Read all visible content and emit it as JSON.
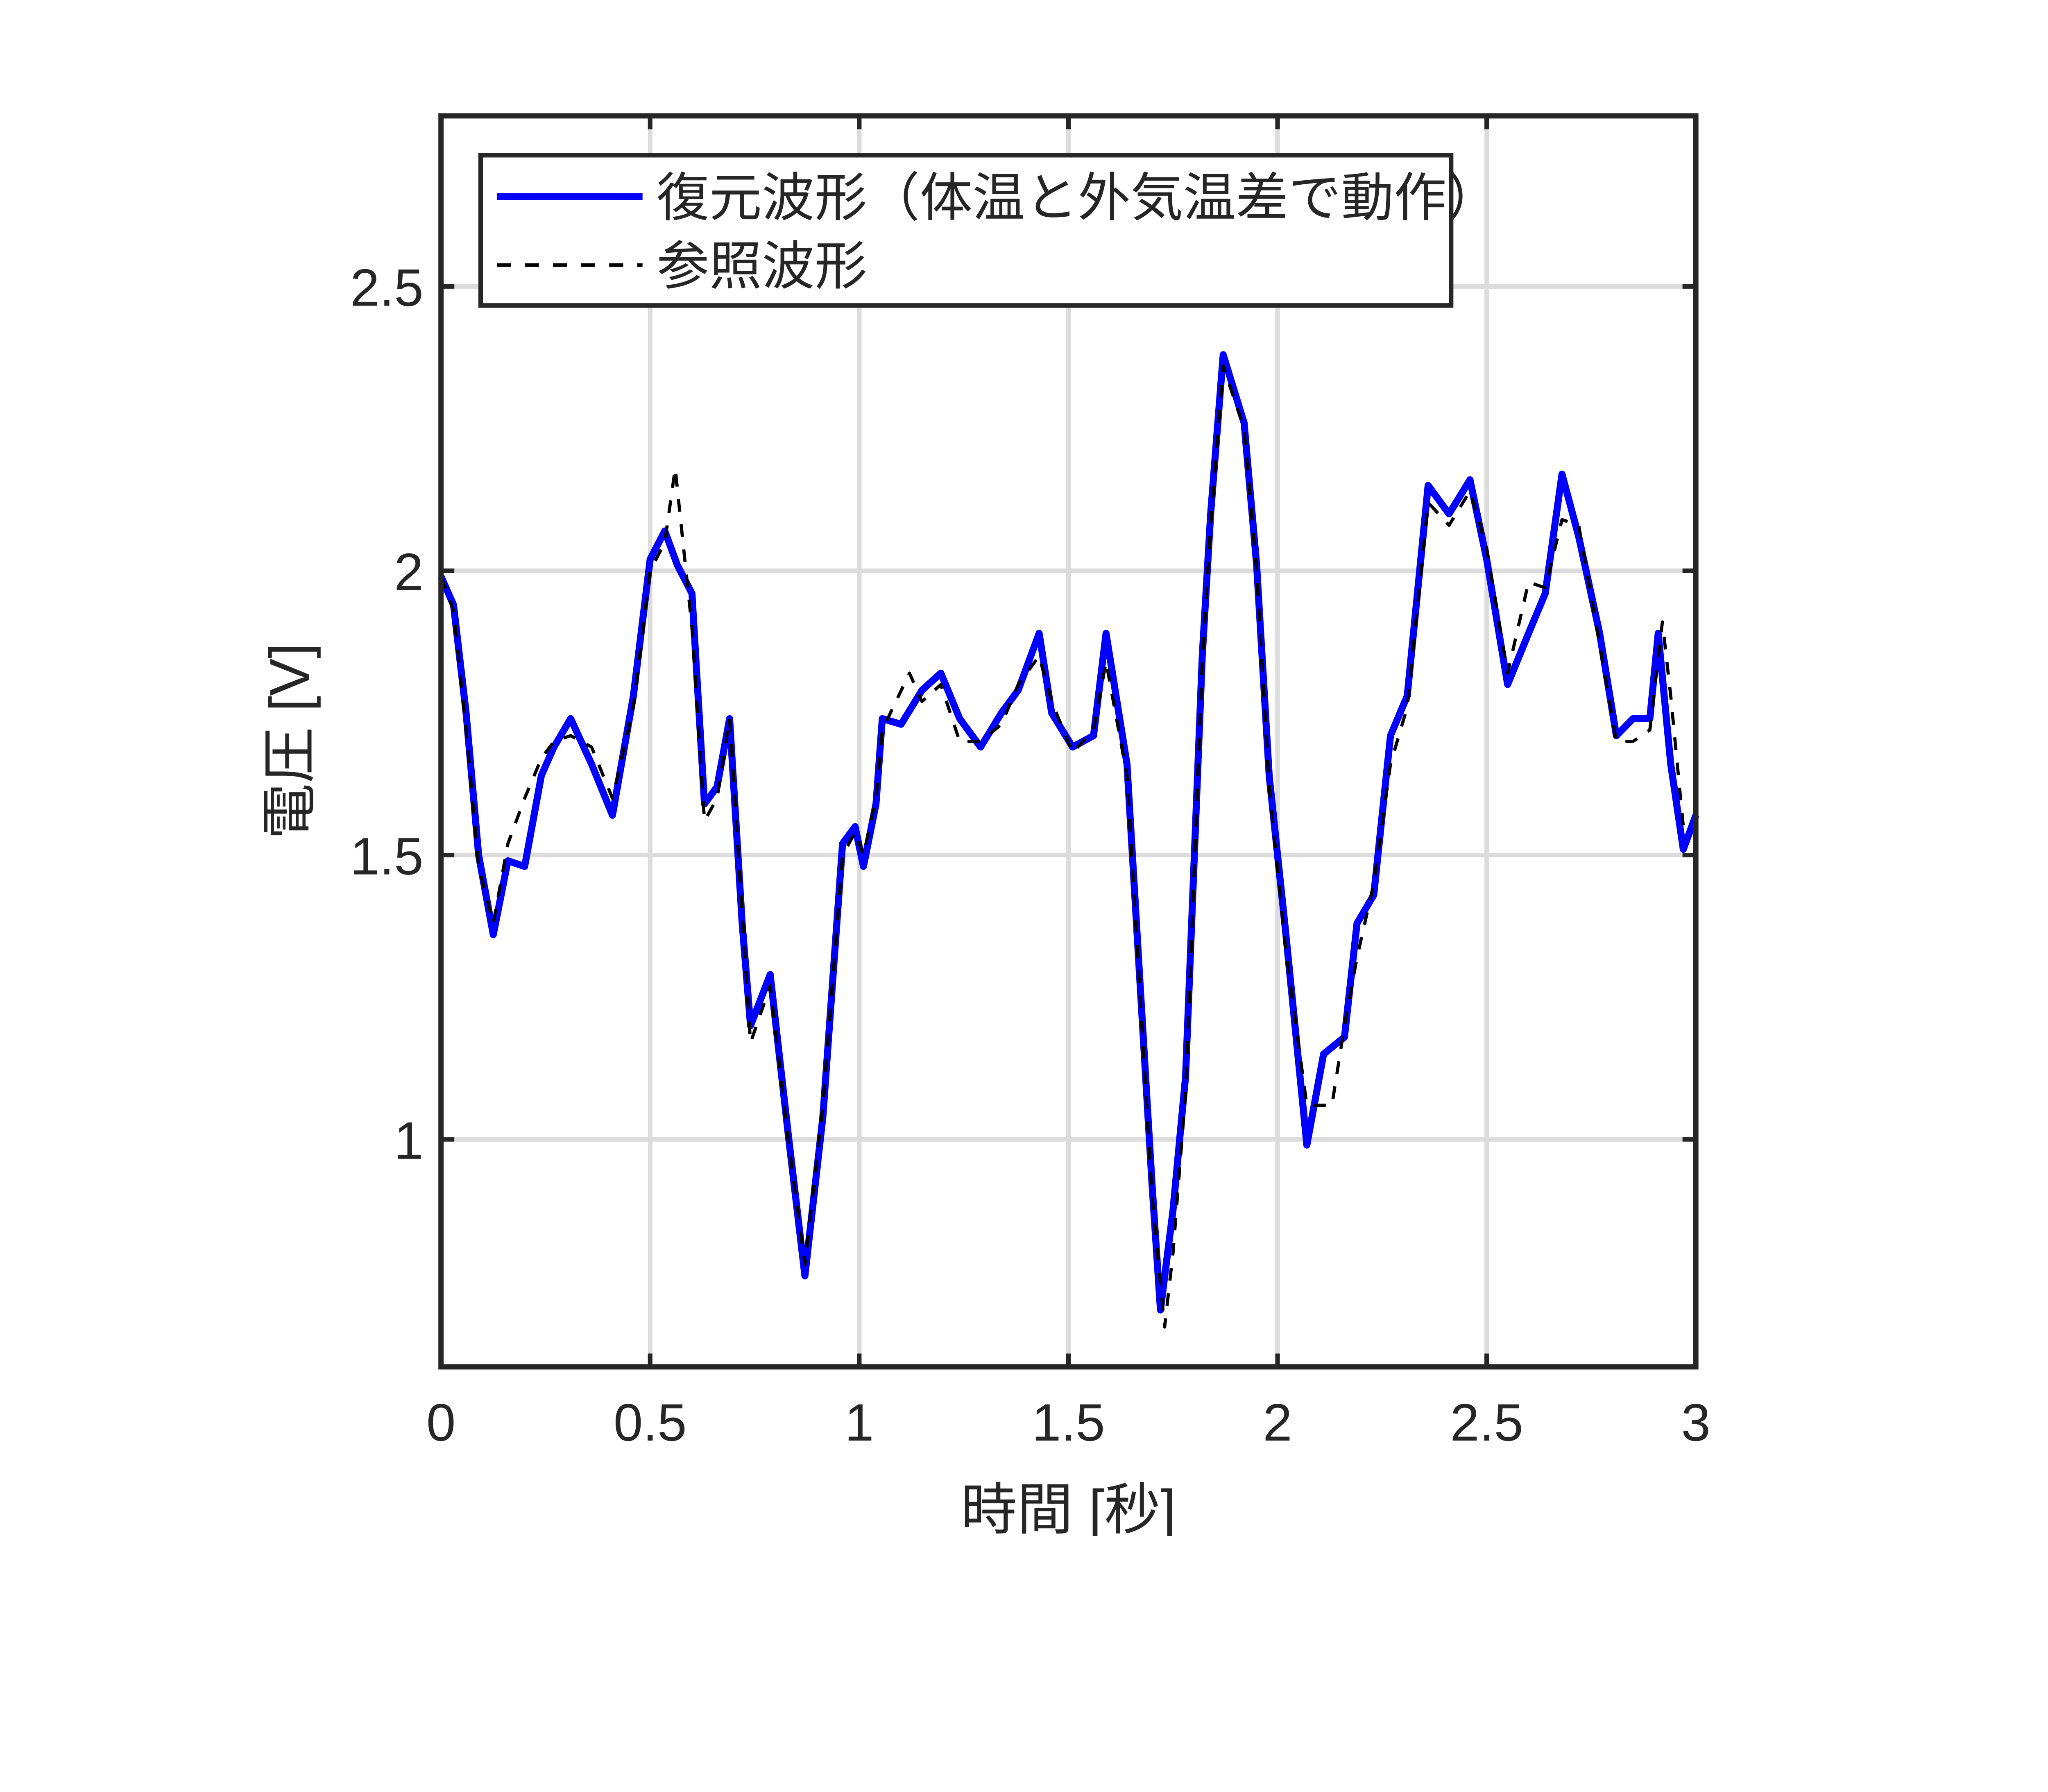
{
  "chart_data": {
    "type": "line",
    "xlabel": "時間 [秒]",
    "ylabel": "電圧 [V]",
    "xlim": [
      0,
      3
    ],
    "ylim": [
      0.6,
      2.8
    ],
    "xticks": [
      0,
      0.5,
      1,
      1.5,
      2,
      2.5,
      3
    ],
    "xtick_labels": [
      "0",
      "0.5",
      "1",
      "1.5",
      "2",
      "2.5",
      "3"
    ],
    "yticks": [
      1,
      1.5,
      2,
      2.5
    ],
    "ytick_labels": [
      "1",
      "1.5",
      "2",
      "2.5"
    ],
    "grid": true,
    "legend_position": "top-left",
    "series": [
      {
        "name": "復元波形（体温と外気温差で動作）",
        "color": "#0000ff",
        "style": "solid",
        "x": [
          0,
          0.03,
          0.06,
          0.09,
          0.125,
          0.16,
          0.2,
          0.24,
          0.27,
          0.31,
          0.36,
          0.41,
          0.46,
          0.5,
          0.535,
          0.565,
          0.6,
          0.63,
          0.66,
          0.69,
          0.72,
          0.74,
          0.787,
          0.83,
          0.87,
          0.913,
          0.96,
          0.99,
          1.01,
          1.04,
          1.055,
          1.1,
          1.15,
          1.195,
          1.24,
          1.29,
          1.34,
          1.38,
          1.43,
          1.46,
          1.51,
          1.56,
          1.59,
          1.64,
          1.67,
          1.7,
          1.72,
          1.75,
          1.78,
          1.82,
          1.84,
          1.87,
          1.92,
          1.95,
          1.98,
          2.02,
          2.07,
          2.11,
          2.16,
          2.19,
          2.23,
          2.27,
          2.31,
          2.36,
          2.41,
          2.46,
          2.5,
          2.55,
          2.6,
          2.64,
          2.68,
          2.72,
          2.77,
          2.81,
          2.85,
          2.89,
          2.91,
          2.94,
          2.97,
          3.0
        ],
        "y": [
          1.99,
          1.94,
          1.75,
          1.5,
          1.36,
          1.49,
          1.48,
          1.64,
          1.69,
          1.74,
          1.66,
          1.57,
          1.78,
          2.02,
          2.07,
          2.01,
          1.96,
          1.59,
          1.62,
          1.74,
          1.38,
          1.2,
          1.29,
          1.01,
          0.76,
          1.04,
          1.52,
          1.55,
          1.48,
          1.59,
          1.74,
          1.73,
          1.79,
          1.82,
          1.74,
          1.69,
          1.75,
          1.79,
          1.89,
          1.75,
          1.69,
          1.71,
          1.89,
          1.66,
          1.29,
          0.92,
          0.7,
          0.875,
          1.11,
          1.85,
          2.1,
          2.38,
          2.26,
          2.01,
          1.64,
          1.36,
          0.99,
          1.15,
          1.18,
          1.38,
          1.43,
          1.71,
          1.78,
          2.15,
          2.1,
          2.16,
          2.02,
          1.8,
          1.89,
          1.96,
          2.17,
          2.06,
          1.89,
          1.71,
          1.74,
          1.74,
          1.89,
          1.66,
          1.51,
          1.57
        ]
      },
      {
        "name": "参照波形",
        "color": "#000000",
        "style": "dashed",
        "x": [
          0,
          0.03,
          0.06,
          0.09,
          0.125,
          0.16,
          0.2,
          0.24,
          0.27,
          0.31,
          0.36,
          0.41,
          0.46,
          0.5,
          0.535,
          0.56,
          0.6,
          0.63,
          0.66,
          0.69,
          0.72,
          0.74,
          0.787,
          0.83,
          0.87,
          0.913,
          0.96,
          0.99,
          1.01,
          1.04,
          1.055,
          1.12,
          1.15,
          1.195,
          1.24,
          1.29,
          1.34,
          1.38,
          1.43,
          1.46,
          1.51,
          1.56,
          1.59,
          1.64,
          1.67,
          1.7,
          1.73,
          1.75,
          1.78,
          1.82,
          1.84,
          1.87,
          1.92,
          1.95,
          1.98,
          2.02,
          2.07,
          2.13,
          2.16,
          2.19,
          2.23,
          2.27,
          2.31,
          2.36,
          2.41,
          2.46,
          2.5,
          2.55,
          2.6,
          2.64,
          2.68,
          2.72,
          2.77,
          2.81,
          2.85,
          2.89,
          2.92,
          2.94,
          2.97,
          3.0
        ],
        "y": [
          1.99,
          1.93,
          1.72,
          1.48,
          1.38,
          1.52,
          1.6,
          1.67,
          1.7,
          1.71,
          1.69,
          1.6,
          1.76,
          2.0,
          2.05,
          2.18,
          1.9,
          1.56,
          1.6,
          1.74,
          1.4,
          1.17,
          1.27,
          1.0,
          0.78,
          1.06,
          1.5,
          1.54,
          1.5,
          1.6,
          1.72,
          1.82,
          1.77,
          1.8,
          1.7,
          1.7,
          1.73,
          1.8,
          1.85,
          1.77,
          1.68,
          1.72,
          1.84,
          1.64,
          1.27,
          0.9,
          0.67,
          0.8,
          1.08,
          1.84,
          2.08,
          2.36,
          2.25,
          2.0,
          1.62,
          1.33,
          1.06,
          1.06,
          1.2,
          1.32,
          1.45,
          1.66,
          1.76,
          2.12,
          2.08,
          2.14,
          2.04,
          1.82,
          1.98,
          1.97,
          2.09,
          2.08,
          1.87,
          1.7,
          1.7,
          1.72,
          1.91,
          1.78,
          1.55,
          1.55
        ]
      }
    ]
  }
}
